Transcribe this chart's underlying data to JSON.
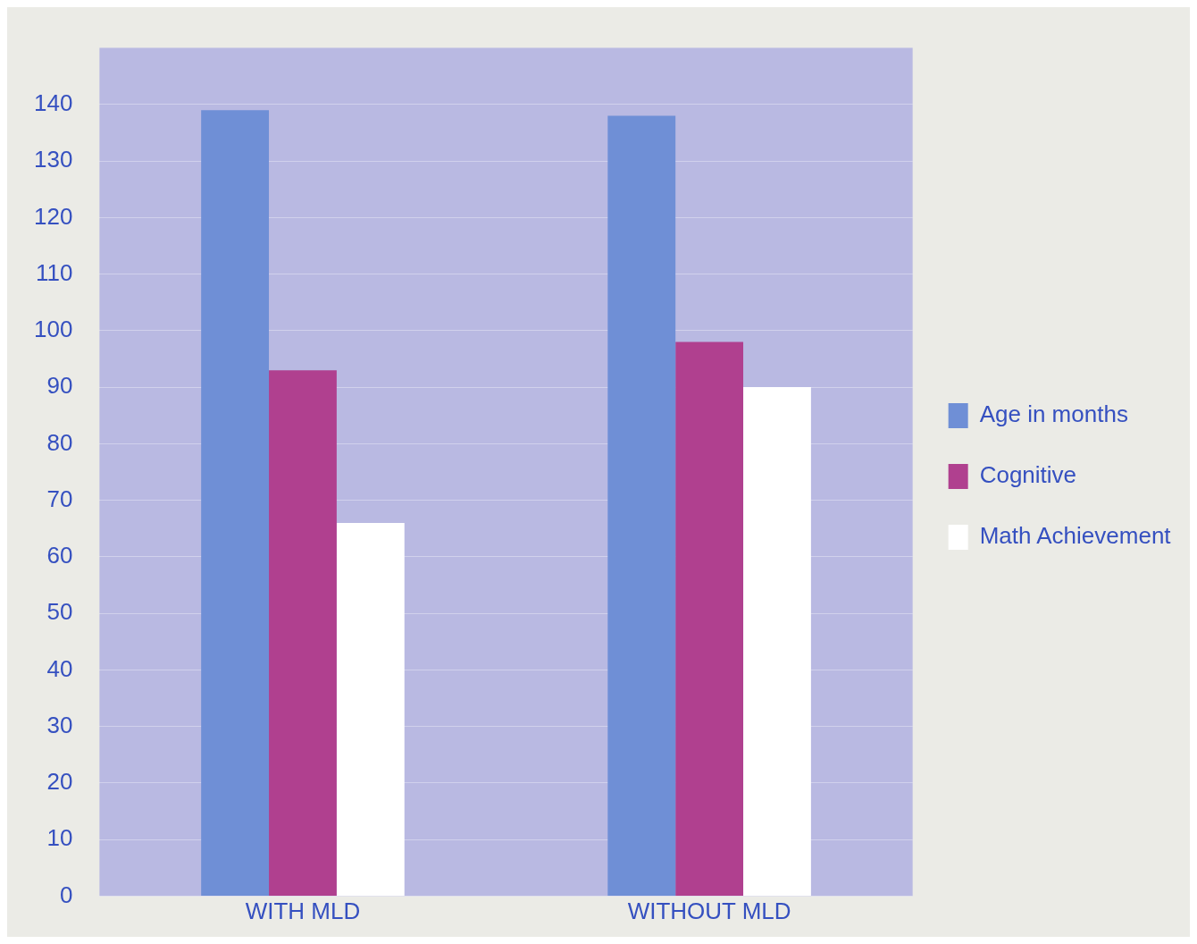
{
  "chart_data": {
    "type": "bar",
    "categories": [
      "WITH MLD",
      "WITHOUT MLD"
    ],
    "series": [
      {
        "name": "Age in months",
        "color": "#6f8fd6",
        "values": [
          139,
          138
        ]
      },
      {
        "name": "Cognitive",
        "color": "#b0408f",
        "values": [
          93,
          98
        ]
      },
      {
        "name": "Math Achievement",
        "color": "#ffffff",
        "values": [
          66,
          90
        ]
      }
    ],
    "ylim": [
      0,
      150
    ],
    "yticks": [
      0,
      10,
      20,
      30,
      40,
      50,
      60,
      70,
      80,
      90,
      100,
      110,
      120,
      130,
      140
    ],
    "grid": "y",
    "legend": "right"
  }
}
